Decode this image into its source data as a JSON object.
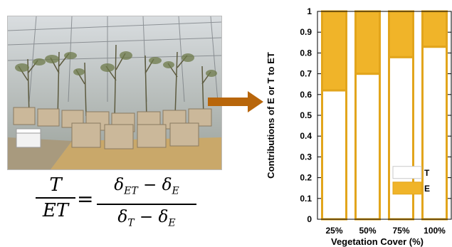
{
  "equation": {
    "lhs_num": "T",
    "lhs_den": "ET",
    "equals": "=",
    "rhs_num": "δ_ET − δ_E",
    "rhs_den": "δ_T − δ_E"
  },
  "colors": {
    "T": "#ffffff",
    "E": "#f0b429",
    "bar_edge": "#e2a51c",
    "arrow": "#b8660b"
  },
  "chart_data": {
    "type": "bar",
    "stacked": true,
    "categories": [
      "25%",
      "50%",
      "75%",
      "100%"
    ],
    "series": [
      {
        "name": "T",
        "values": [
          0.62,
          0.7,
          0.78,
          0.83
        ]
      },
      {
        "name": "E",
        "values": [
          0.38,
          0.3,
          0.22,
          0.17
        ]
      }
    ],
    "xlabel": "Vegetation Cover (%)",
    "ylabel": "Contributions of E or T to ET",
    "ylim": [
      0,
      1
    ],
    "yticks": [
      "0",
      "0.1",
      "0.2",
      "0.3",
      "0.4",
      "0.5",
      "0.6",
      "0.7",
      "0.8",
      "0.9",
      "1"
    ],
    "grid": false,
    "legend": {
      "placement": "bottom-right",
      "order": [
        "T",
        "E"
      ]
    }
  }
}
